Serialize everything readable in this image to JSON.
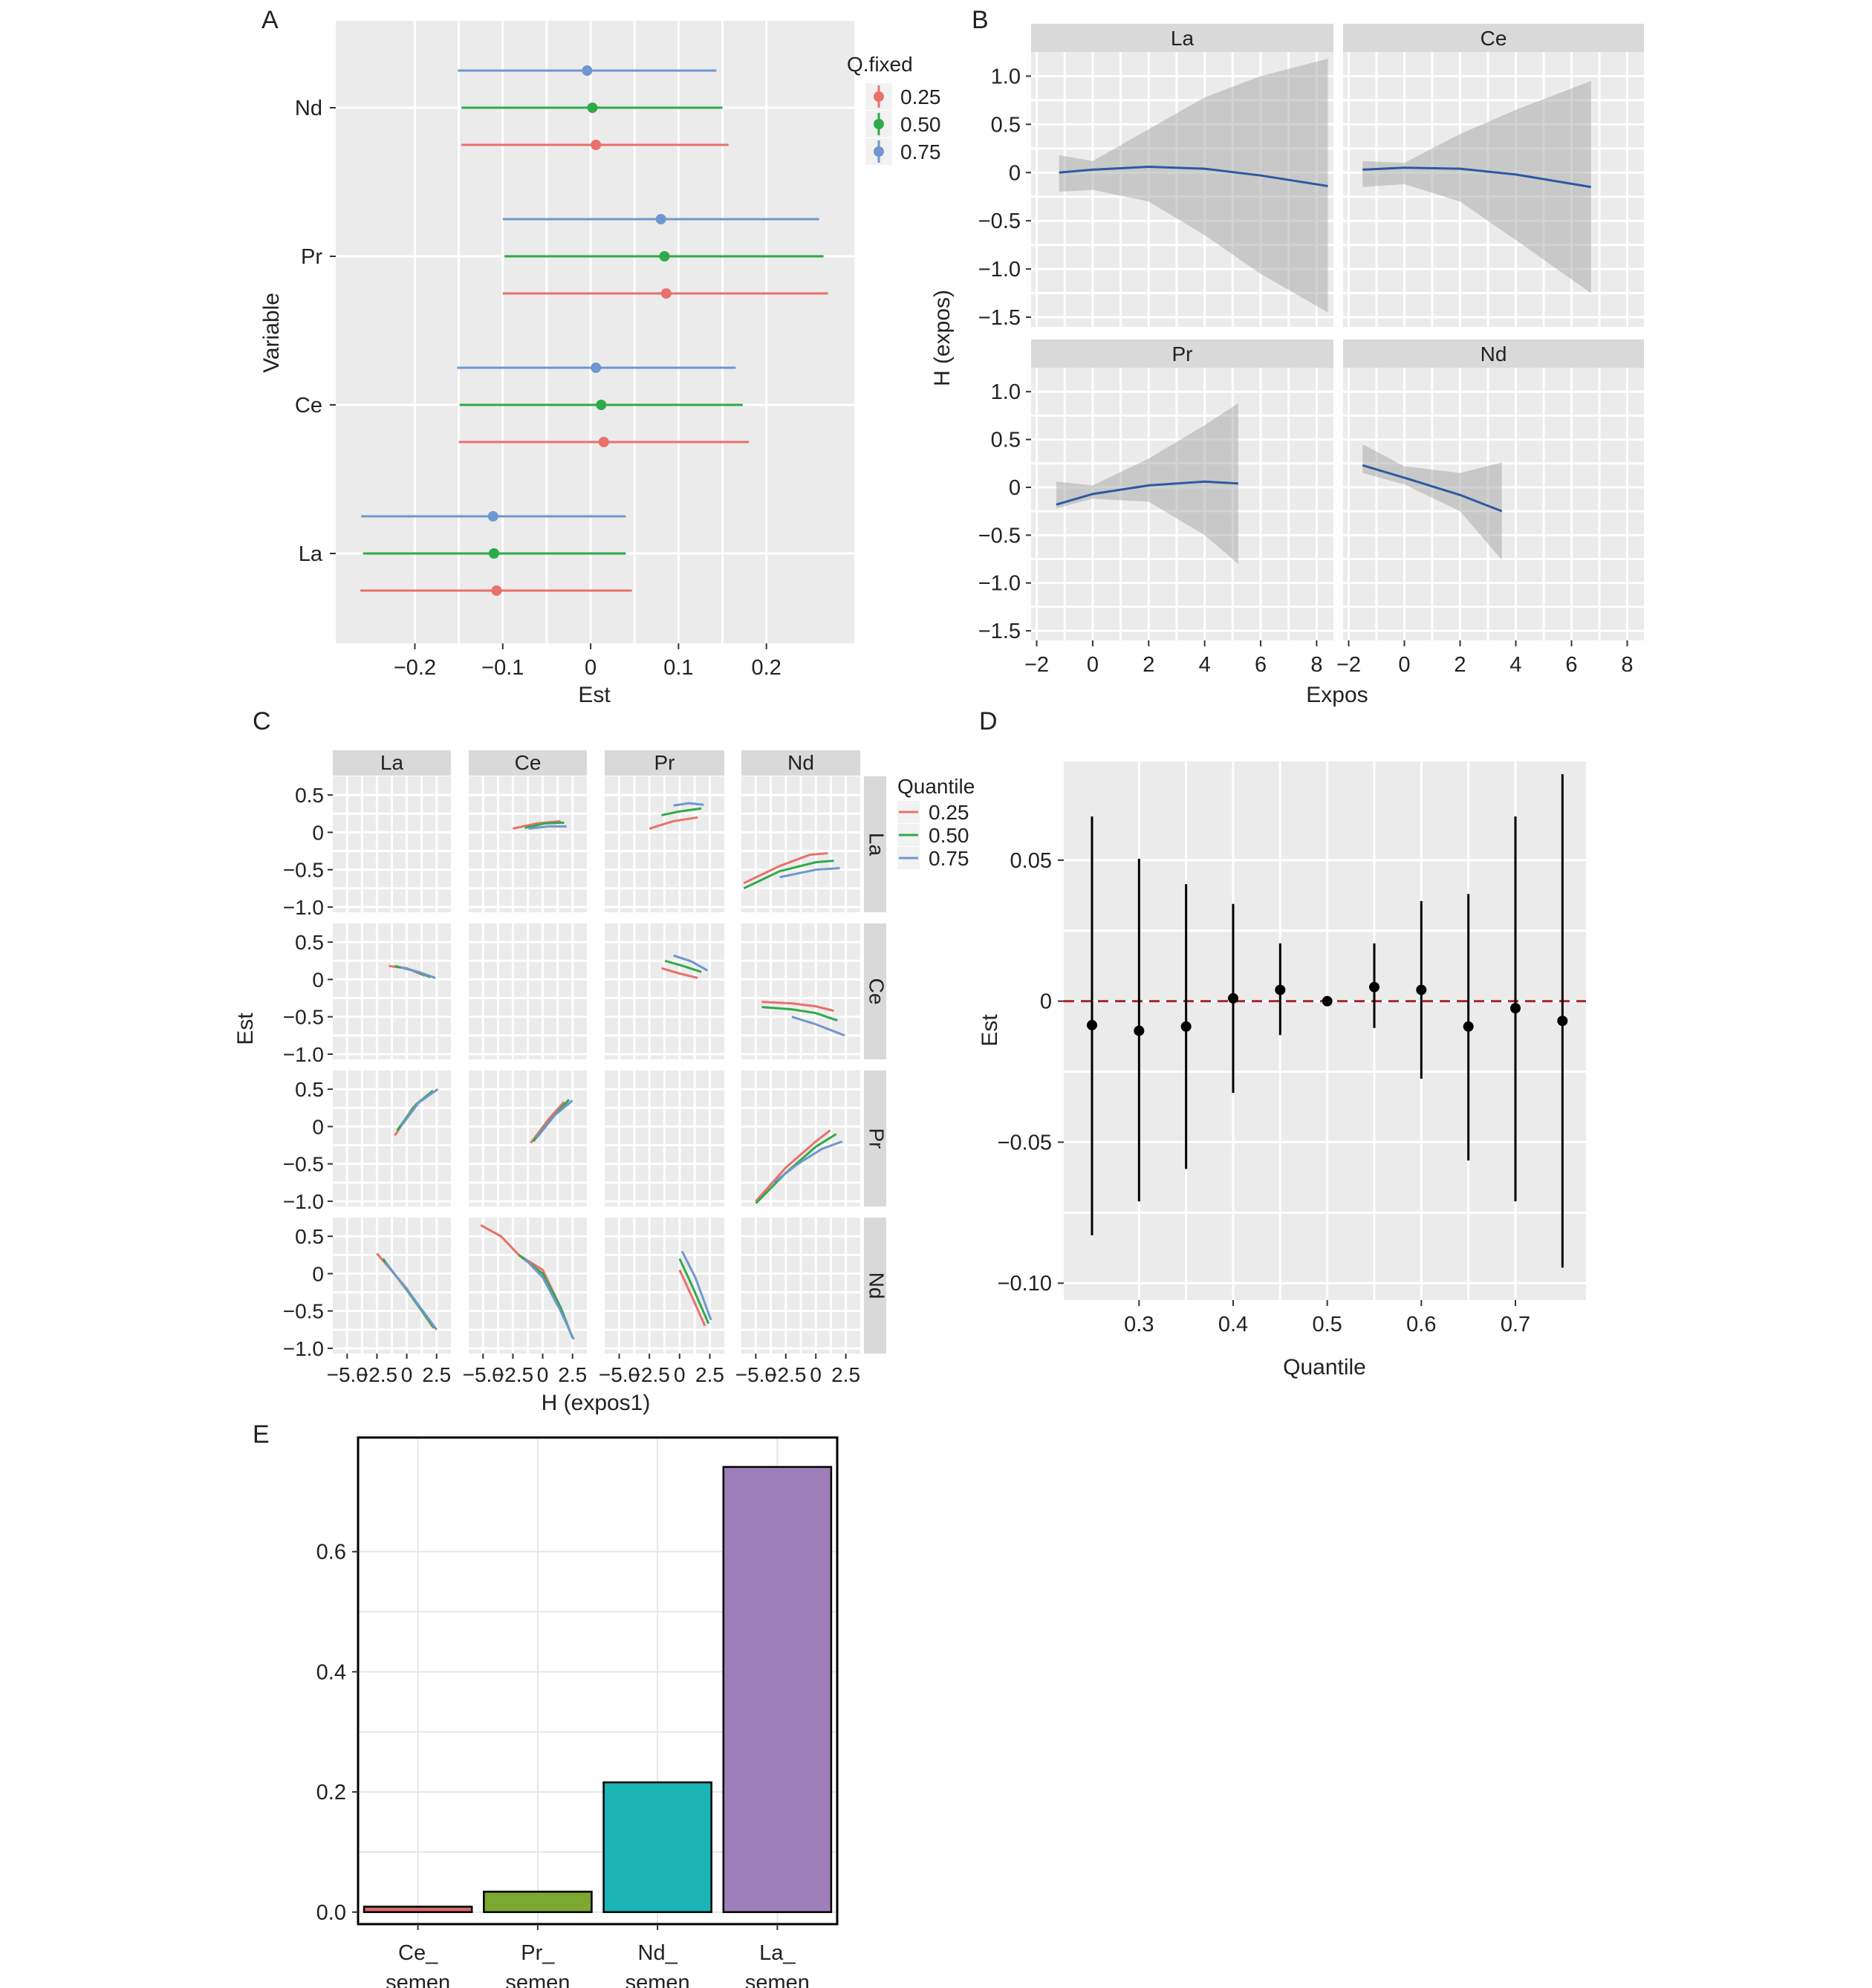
{
  "chart_data": [
    {
      "panel": "A",
      "type": "scatter",
      "xlabel": "Est",
      "ylabel": "Variable",
      "xlim": [
        -0.29,
        0.3
      ],
      "x_ticks": [
        "−0.2",
        "−0.1",
        "0",
        "0.1",
        "0.2"
      ],
      "x_tick_values": [
        -0.2,
        -0.1,
        0,
        0.1,
        0.2
      ],
      "categories": [
        "La",
        "Ce",
        "Pr",
        "Nd"
      ],
      "legend_title": "Q.fixed",
      "legend_position": "right",
      "series": [
        {
          "name": "0.25",
          "color": "#E8716B",
          "est": [
            -0.107,
            0.015,
            0.086,
            0.006
          ],
          "lo": [
            -0.262,
            -0.15,
            -0.1,
            -0.147
          ],
          "hi": [
            0.047,
            0.18,
            0.27,
            0.157
          ]
        },
        {
          "name": "0.50",
          "color": "#2FAA4A",
          "est": [
            -0.11,
            0.012,
            0.084,
            0.002
          ],
          "lo": [
            -0.259,
            -0.149,
            -0.098,
            -0.147
          ],
          "hi": [
            0.04,
            0.173,
            0.265,
            0.15
          ]
        },
        {
          "name": "0.75",
          "color": "#6F97CF",
          "est": [
            -0.111,
            0.006,
            0.08,
            -0.004
          ],
          "lo": [
            -0.261,
            -0.152,
            -0.1,
            -0.151
          ],
          "hi": [
            0.04,
            0.165,
            0.26,
            0.143
          ]
        }
      ]
    },
    {
      "panel": "B",
      "type": "line",
      "xlabel": "Expos",
      "ylabel": "H (expos)",
      "xlim": [
        -2.2,
        8.6
      ],
      "ylim": [
        -1.6,
        1.25
      ],
      "x_ticks": [
        "−2",
        "0",
        "2",
        "4",
        "6",
        "8"
      ],
      "x_tick_values": [
        -2,
        0,
        2,
        4,
        6,
        8
      ],
      "y_ticks": [
        "1.0",
        "0.5",
        "0",
        "−0.5",
        "−1.0",
        "−1.5"
      ],
      "y_tick_values": [
        1.0,
        0.5,
        0,
        -0.5,
        -1.0,
        -1.5
      ],
      "facets": [
        {
          "name": "La",
          "x": [
            -1.2,
            0,
            2,
            4,
            6,
            8.4
          ],
          "fit": [
            0.0,
            0.03,
            0.06,
            0.04,
            -0.03,
            -0.14
          ],
          "lo": [
            -0.2,
            -0.18,
            -0.3,
            -0.65,
            -1.05,
            -1.45
          ],
          "hi": [
            0.18,
            0.12,
            0.45,
            0.78,
            1.0,
            1.18
          ]
        },
        {
          "name": "Ce",
          "x": [
            -1.5,
            0,
            2,
            4,
            6.7
          ],
          "fit": [
            0.03,
            0.05,
            0.04,
            -0.02,
            -0.15
          ],
          "lo": [
            -0.15,
            -0.12,
            -0.3,
            -0.7,
            -1.25
          ],
          "hi": [
            0.12,
            0.1,
            0.4,
            0.65,
            0.95
          ]
        },
        {
          "name": "Pr",
          "x": [
            -1.3,
            0,
            2,
            4,
            5.2
          ],
          "fit": [
            -0.18,
            -0.07,
            0.02,
            0.06,
            0.04
          ],
          "lo": [
            -0.22,
            -0.12,
            -0.15,
            -0.5,
            -0.8
          ],
          "hi": [
            0.06,
            0.02,
            0.3,
            0.65,
            0.88
          ]
        },
        {
          "name": "Nd",
          "x": [
            -1.5,
            0,
            2,
            3.5
          ],
          "fit": [
            0.23,
            0.1,
            -0.08,
            -0.25
          ],
          "lo": [
            0.15,
            0.03,
            -0.25,
            -0.76
          ],
          "hi": [
            0.45,
            0.22,
            0.15,
            0.26
          ]
        }
      ]
    },
    {
      "panel": "C",
      "type": "line",
      "xlabel": "H (expos1)",
      "ylabel": "Est",
      "xlim": [
        -6.2,
        3.7
      ],
      "ylim": [
        -1.07,
        0.75
      ],
      "x_ticks": [
        "−5.0",
        "−2.5",
        "0",
        "2.5"
      ],
      "x_tick_values": [
        -5.0,
        -2.5,
        0,
        2.5
      ],
      "y_ticks": [
        "0.5",
        "0",
        "−0.5",
        "−1.0"
      ],
      "y_tick_values": [
        0.5,
        0,
        -0.5,
        -1.0
      ],
      "cols": [
        "La",
        "Ce",
        "Pr",
        "Nd"
      ],
      "rows": [
        "La",
        "Ce",
        "Pr",
        "Nd"
      ],
      "legend_title": "Quantile",
      "legend_position": "right",
      "series": [
        {
          "name": "0.25",
          "color": "#E8716B"
        },
        {
          "name": "0.50",
          "color": "#2FAA4A"
        },
        {
          "name": "0.75",
          "color": "#6F97CF"
        }
      ],
      "cells": {
        "La-La": [],
        "Ce-Ce": [],
        "Pr-Pr": [],
        "Nd-Nd": [],
        "La-Ce": [
          [
            [
              -1.5,
              0.18
            ],
            [
              0,
              0.15
            ],
            [
              1.5,
              0.05
            ]
          ],
          [
            [
              -1,
              0.18
            ],
            [
              0.5,
              0.12
            ],
            [
              2,
              0.03
            ]
          ],
          [
            [
              -0.5,
              0.16
            ],
            [
              1,
              0.1
            ],
            [
              2.4,
              0.02
            ]
          ]
        ],
        "La-Pr": [
          [
            [
              -1,
              -0.12
            ],
            [
              0.5,
              0.25
            ],
            [
              2,
              0.45
            ]
          ],
          [
            [
              -0.8,
              -0.05
            ],
            [
              0.8,
              0.3
            ],
            [
              2.2,
              0.48
            ]
          ],
          [
            [
              -0.5,
              0.0
            ],
            [
              1,
              0.32
            ],
            [
              2.6,
              0.5
            ]
          ]
        ],
        "La-Nd": [
          [
            [
              -2.5,
              0.27
            ],
            [
              0,
              -0.2
            ],
            [
              2.2,
              -0.72
            ]
          ],
          [
            [
              -2,
              0.2
            ],
            [
              0,
              -0.22
            ],
            [
              2.3,
              -0.73
            ]
          ],
          [
            [
              -1.8,
              0.15
            ],
            [
              0.2,
              -0.25
            ],
            [
              2.5,
              -0.75
            ]
          ]
        ],
        "Ce-La": [
          [
            [
              -2.5,
              0.05
            ],
            [
              -0.5,
              0.12
            ],
            [
              1.5,
              0.15
            ]
          ],
          [
            [
              -1.5,
              0.06
            ],
            [
              0.2,
              0.12
            ],
            [
              1.8,
              0.13
            ]
          ],
          [
            [
              -1.2,
              0.05
            ],
            [
              0.5,
              0.08
            ],
            [
              2,
              0.08
            ]
          ]
        ],
        "Ce-Pr": [
          [
            [
              -1,
              -0.22
            ],
            [
              0.5,
              0.1
            ],
            [
              1.8,
              0.33
            ]
          ],
          [
            [
              -0.8,
              -0.2
            ],
            [
              0.8,
              0.12
            ],
            [
              2.2,
              0.36
            ]
          ],
          [
            [
              -0.5,
              -0.15
            ],
            [
              1,
              0.15
            ],
            [
              2.5,
              0.35
            ]
          ]
        ],
        "Ce-Nd": [
          [
            [
              -5.2,
              0.65
            ],
            [
              -3.5,
              0.5
            ],
            [
              -2,
              0.25
            ],
            [
              0,
              0.05
            ],
            [
              1.5,
              -0.45
            ],
            [
              2.4,
              -0.82
            ]
          ],
          [
            [
              -2,
              0.25
            ],
            [
              0,
              0.0
            ],
            [
              1.5,
              -0.45
            ],
            [
              2.5,
              -0.86
            ]
          ],
          [
            [
              -1.5,
              0.2
            ],
            [
              0,
              -0.05
            ],
            [
              1.5,
              -0.5
            ],
            [
              2.6,
              -0.88
            ]
          ]
        ],
        "Pr-La": [
          [
            [
              -2.5,
              0.05
            ],
            [
              -0.5,
              0.15
            ],
            [
              1.5,
              0.2
            ]
          ],
          [
            [
              -1.5,
              0.23
            ],
            [
              0,
              0.28
            ],
            [
              1.8,
              0.32
            ]
          ],
          [
            [
              -0.5,
              0.36
            ],
            [
              0.8,
              0.39
            ],
            [
              2,
              0.37
            ]
          ]
        ],
        "Pr-Ce": [
          [
            [
              -1.5,
              0.15
            ],
            [
              0,
              0.08
            ],
            [
              1.5,
              0.02
            ]
          ],
          [
            [
              -1.2,
              0.25
            ],
            [
              0.3,
              0.18
            ],
            [
              1.8,
              0.1
            ]
          ],
          [
            [
              -0.5,
              0.32
            ],
            [
              1,
              0.24
            ],
            [
              2.3,
              0.12
            ]
          ]
        ],
        "Pr-Nd": [
          [
            [
              0,
              0.05
            ],
            [
              1,
              -0.3
            ],
            [
              2.1,
              -0.7
            ]
          ],
          [
            [
              0,
              0.2
            ],
            [
              1,
              -0.15
            ],
            [
              2.4,
              -0.67
            ]
          ],
          [
            [
              0.2,
              0.3
            ],
            [
              1.3,
              -0.05
            ],
            [
              2.6,
              -0.62
            ]
          ]
        ],
        "Nd-La": [
          [
            [
              -6,
              -0.68
            ],
            [
              -3,
              -0.45
            ],
            [
              -0.5,
              -0.3
            ],
            [
              1,
              -0.28
            ]
          ],
          [
            [
              -6,
              -0.75
            ],
            [
              -3,
              -0.52
            ],
            [
              0,
              -0.4
            ],
            [
              1.5,
              -0.38
            ]
          ],
          [
            [
              -3,
              -0.6
            ],
            [
              0,
              -0.5
            ],
            [
              2,
              -0.48
            ]
          ]
        ],
        "Nd-Ce": [
          [
            [
              -4.5,
              -0.3
            ],
            [
              -2,
              -0.32
            ],
            [
              0,
              -0.36
            ],
            [
              1.5,
              -0.42
            ]
          ],
          [
            [
              -4.5,
              -0.37
            ],
            [
              -2,
              -0.4
            ],
            [
              0,
              -0.45
            ],
            [
              1.8,
              -0.55
            ]
          ],
          [
            [
              -2,
              -0.5
            ],
            [
              0,
              -0.6
            ],
            [
              2.4,
              -0.75
            ]
          ]
        ],
        "Nd-Pr": [
          [
            [
              -5,
              -1.0
            ],
            [
              -2.5,
              -0.55
            ],
            [
              0,
              -0.2
            ],
            [
              1.2,
              -0.05
            ]
          ],
          [
            [
              -5,
              -1.03
            ],
            [
              -2.5,
              -0.62
            ],
            [
              0,
              -0.27
            ],
            [
              1.7,
              -0.1
            ]
          ],
          [
            [
              -3.5,
              -0.75
            ],
            [
              -1.5,
              -0.5
            ],
            [
              0.5,
              -0.3
            ],
            [
              2.2,
              -0.2
            ]
          ]
        ]
      }
    },
    {
      "panel": "D",
      "type": "scatter",
      "xlabel": "Quantile",
      "ylabel": "Est",
      "xlim": [
        0.22,
        0.775
      ],
      "ylim": [
        -0.106,
        0.085
      ],
      "x_ticks": [
        "0.3",
        "0.4",
        "0.5",
        "0.6",
        "0.7"
      ],
      "x_tick_values": [
        0.3,
        0.4,
        0.5,
        0.6,
        0.7
      ],
      "y_ticks": [
        "0.05",
        "0",
        "−0.05",
        "−0.10"
      ],
      "y_tick_values": [
        0.05,
        0,
        -0.05,
        -0.1
      ],
      "reference_line": 0,
      "reference_color": "#A52A2A",
      "x": [
        0.25,
        0.3,
        0.35,
        0.4,
        0.45,
        0.5,
        0.55,
        0.6,
        0.65,
        0.7,
        0.75
      ],
      "est": [
        -0.0085,
        -0.0105,
        -0.009,
        0.001,
        0.004,
        0.0,
        0.005,
        0.004,
        -0.009,
        -0.0025,
        -0.007
      ],
      "lo": [
        -0.083,
        -0.071,
        -0.0595,
        -0.0325,
        -0.012,
        0.0,
        -0.0095,
        -0.0275,
        -0.0565,
        -0.071,
        -0.0945
      ],
      "hi": [
        0.0655,
        0.0505,
        0.0415,
        0.0345,
        0.0205,
        0.0,
        0.0205,
        0.0355,
        0.038,
        0.0655,
        0.0805
      ]
    },
    {
      "panel": "E",
      "type": "bar",
      "categories": [
        [
          "Ce_",
          "semen"
        ],
        [
          "Pr_",
          "semen"
        ],
        [
          "Nd_",
          "semen"
        ],
        [
          "La_",
          "semen"
        ]
      ],
      "values": [
        0.009,
        0.034,
        0.216,
        0.741
      ],
      "colors": [
        "#D96B6B",
        "#7CA832",
        "#1BB4B4",
        "#9D7EB8"
      ],
      "ylim": [
        -0.02,
        0.79
      ],
      "y_ticks": [
        "0.0",
        "0.2",
        "0.4",
        "0.6"
      ],
      "y_tick_values": [
        0.0,
        0.2,
        0.4,
        0.6
      ]
    }
  ]
}
